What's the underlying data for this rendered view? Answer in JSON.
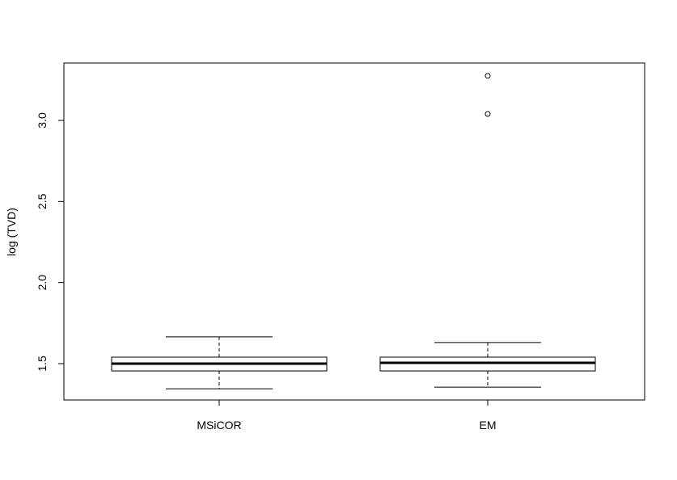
{
  "chart_data": {
    "type": "boxplot",
    "title": "",
    "xlabel": "",
    "ylabel": "log (TVD)",
    "ylim": [
      1.25,
      3.32
    ],
    "yticks": [
      1.5,
      2.0,
      2.5,
      3.0
    ],
    "ytick_labels": [
      "1.5",
      "2.0",
      "2.5",
      "3.0"
    ],
    "categories": [
      "MSiCOR",
      "EM"
    ],
    "boxes": [
      {
        "name": "MSiCOR",
        "whisker_low": 1.345,
        "q1": 1.455,
        "median": 1.5,
        "q3": 1.54,
        "whisker_high": 1.665,
        "outliers": []
      },
      {
        "name": "EM",
        "whisker_low": 1.355,
        "q1": 1.455,
        "median": 1.505,
        "q3": 1.54,
        "whisker_high": 1.63,
        "outliers": [
          3.04,
          3.275
        ]
      }
    ],
    "grid": false,
    "colors": {
      "stroke": "#000000",
      "background": "#ffffff"
    }
  }
}
